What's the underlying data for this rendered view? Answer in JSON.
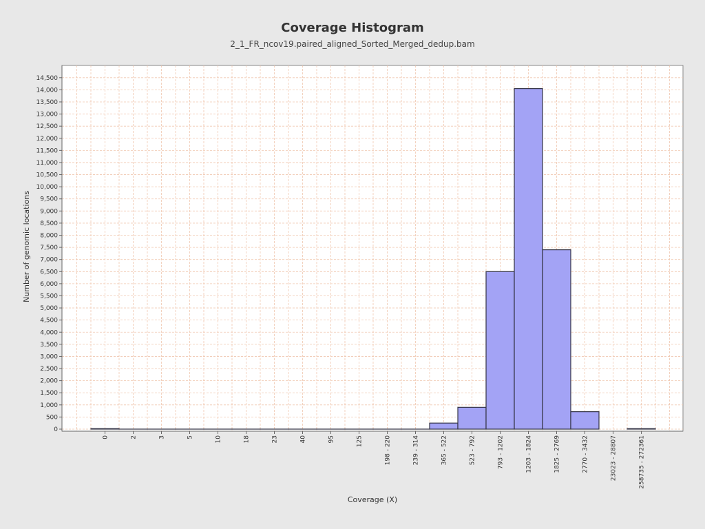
{
  "chart_data": {
    "type": "bar",
    "title": "Coverage Histogram",
    "subtitle": "2_1_FR_ncov19.paired_aligned_Sorted_Merged_dedup.bam",
    "xlabel": "Coverage (X)",
    "ylabel": "Number of genomic locations",
    "categories": [
      "0",
      "2",
      "3",
      "5",
      "10",
      "18",
      "23",
      "40",
      "95",
      "125",
      "198 - 220",
      "239 - 314",
      "365 - 522",
      "523 - 792",
      "793 - 1202",
      "1203 - 1824",
      "1825 - 2769",
      "2770 - 3432",
      "23023 - 28807",
      "258735 - 272361"
    ],
    "values": [
      20,
      1,
      1,
      1,
      1,
      1,
      1,
      1,
      1,
      1,
      1,
      1,
      250,
      900,
      6500,
      14050,
      7400,
      720,
      0,
      20
    ],
    "ylim": [
      0,
      14750
    ],
    "yticks": [
      0,
      500,
      1000,
      1500,
      2000,
      2500,
      3000,
      3500,
      4000,
      4500,
      5000,
      5500,
      6000,
      6500,
      7000,
      7500,
      8000,
      8500,
      9000,
      9500,
      10000,
      10500,
      11000,
      11500,
      12000,
      12500,
      13000,
      13500,
      14000,
      14500
    ],
    "grid": true,
    "legend": "none",
    "colors": {
      "bar_fill": "#a3a3f5",
      "bar_stroke": "#333344",
      "grid": "#f0c8b0",
      "plot_bg": "#ffffff",
      "page_bg": "#e8e8e8"
    }
  }
}
